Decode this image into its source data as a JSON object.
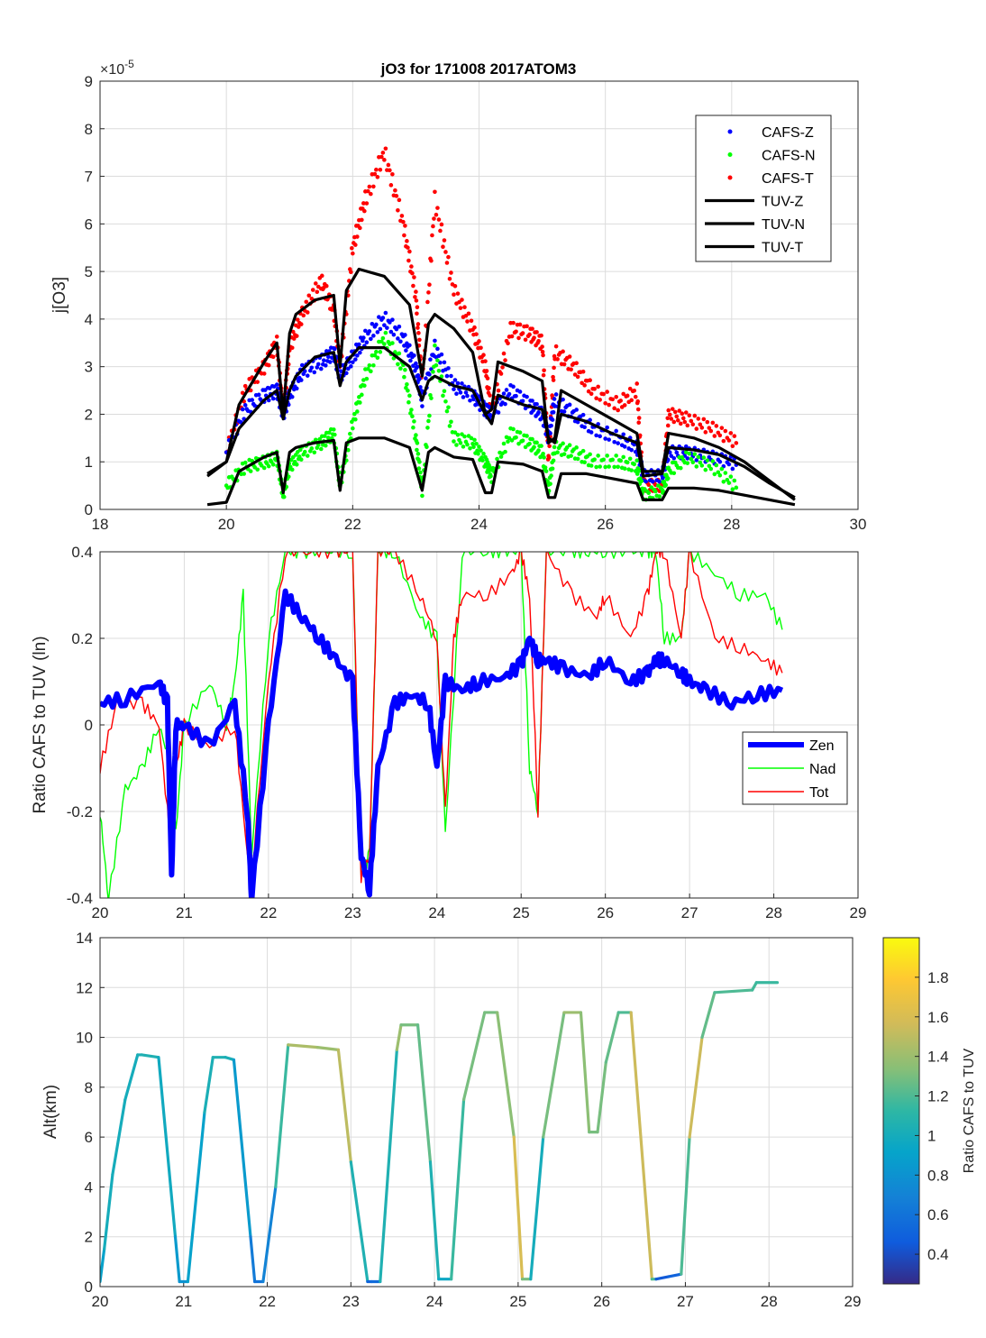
{
  "chart_data": [
    {
      "type": "scatter",
      "title": "jO3 for 171008 2017ATOM3",
      "xlabel": "",
      "ylabel": "j[O3]",
      "y_multiplier": "×10⁻⁵",
      "y_exponent_base": "×10",
      "y_exponent": "-5",
      "xlim": [
        18,
        30
      ],
      "ylim": [
        0,
        9
      ],
      "xticks": [
        18,
        20,
        22,
        24,
        26,
        28,
        30
      ],
      "yticks": [
        0,
        1,
        2,
        3,
        4,
        5,
        6,
        7,
        8,
        9
      ],
      "grid": true,
      "legend_position": "top-right",
      "legend": [
        "CAFS-Z",
        "CAFS-N",
        "CAFS-T",
        "TUV-Z",
        "TUV-N",
        "TUV-T"
      ],
      "series": [
        {
          "name": "CAFS-Z",
          "style": "dots",
          "color": "#0000ff",
          "x": [
            20.0,
            20.3,
            20.6,
            20.8,
            20.9,
            21.0,
            21.2,
            21.5,
            21.7,
            21.8,
            22.0,
            22.2,
            22.5,
            22.8,
            23.0,
            23.1,
            23.3,
            23.6,
            23.9,
            24.1,
            24.2,
            24.5,
            24.8,
            25.0,
            25.1,
            25.2,
            25.5,
            25.8,
            26.2,
            26.5,
            26.6,
            26.9,
            27.0,
            27.3,
            27.7,
            28.1
          ],
          "y": [
            1.2,
            2.1,
            2.4,
            2.5,
            2.0,
            2.4,
            2.9,
            3.1,
            3.3,
            2.8,
            3.2,
            3.6,
            4.0,
            3.6,
            3.0,
            2.3,
            3.4,
            2.6,
            2.4,
            2.1,
            2.0,
            2.5,
            2.2,
            2.0,
            1.5,
            2.3,
            2.0,
            1.7,
            1.5,
            1.3,
            0.7,
            0.7,
            1.2,
            1.2,
            1.1,
            0.95
          ]
        },
        {
          "name": "CAFS-N",
          "style": "dots",
          "color": "#00ff00",
          "x": [
            20.0,
            20.3,
            20.6,
            20.8,
            20.9,
            21.0,
            21.2,
            21.5,
            21.7,
            21.8,
            22.0,
            22.2,
            22.5,
            22.8,
            23.0,
            23.1,
            23.3,
            23.6,
            23.9,
            24.1,
            24.2,
            24.5,
            24.8,
            25.0,
            25.1,
            25.2,
            25.5,
            25.8,
            26.2,
            26.5,
            26.6,
            26.9,
            27.0,
            27.3,
            27.7,
            28.1
          ],
          "y": [
            0.5,
            0.9,
            1.0,
            1.1,
            0.3,
            0.9,
            1.2,
            1.4,
            1.6,
            0.5,
            1.8,
            2.8,
            3.6,
            3.0,
            1.5,
            0.4,
            3.3,
            1.5,
            1.4,
            1.0,
            0.7,
            1.6,
            1.4,
            1.2,
            0.4,
            1.3,
            1.2,
            1.0,
            1.0,
            0.9,
            0.3,
            0.4,
            0.8,
            1.1,
            0.9,
            0.45
          ]
        },
        {
          "name": "CAFS-T",
          "style": "dots",
          "color": "#ff0000",
          "x": [
            20.0,
            20.3,
            20.6,
            20.8,
            20.9,
            21.0,
            21.2,
            21.5,
            21.7,
            21.8,
            22.0,
            22.2,
            22.5,
            22.8,
            23.0,
            23.1,
            23.3,
            23.6,
            23.9,
            24.1,
            24.2,
            24.5,
            24.8,
            25.0,
            25.1,
            25.2,
            25.5,
            25.8,
            26.2,
            26.5,
            26.6,
            26.9,
            27.0,
            27.3,
            27.7,
            28.1
          ],
          "y": [
            1.2,
            2.5,
            3.0,
            3.5,
            2.0,
            3.4,
            4.1,
            4.8,
            4.2,
            3.0,
            5.5,
            6.5,
            7.5,
            6.0,
            4.5,
            2.6,
            6.5,
            4.6,
            3.8,
            3.0,
            2.0,
            3.8,
            3.7,
            3.5,
            1.0,
            3.3,
            3.0,
            2.5,
            2.2,
            2.5,
            0.5,
            0.5,
            2.0,
            1.9,
            1.7,
            1.4
          ]
        },
        {
          "name": "TUV-Z",
          "style": "line",
          "color": "#000000",
          "x": [
            19.7,
            20.0,
            20.2,
            20.6,
            20.8,
            20.9,
            21.0,
            21.1,
            21.4,
            21.7,
            21.8,
            21.9,
            22.1,
            22.5,
            22.9,
            23.1,
            23.2,
            23.3,
            23.6,
            23.9,
            24.1,
            24.2,
            24.3,
            24.7,
            25.0,
            25.1,
            25.2,
            25.3,
            25.7,
            26.1,
            26.5,
            26.6,
            26.9,
            27.0,
            27.4,
            27.8,
            28.2,
            28.6,
            29.0
          ],
          "y": [
            0.75,
            1.0,
            1.7,
            2.3,
            2.5,
            1.9,
            2.5,
            2.8,
            3.2,
            3.3,
            2.6,
            3.1,
            3.4,
            3.4,
            3.0,
            2.3,
            2.7,
            2.8,
            2.6,
            2.5,
            2.0,
            1.8,
            2.4,
            2.2,
            2.1,
            1.5,
            1.4,
            2.0,
            1.85,
            1.6,
            1.4,
            0.7,
            0.75,
            1.3,
            1.25,
            1.15,
            0.9,
            0.55,
            0.25
          ]
        },
        {
          "name": "TUV-N",
          "style": "line",
          "color": "#000000",
          "x": [
            19.7,
            20.0,
            20.2,
            20.6,
            20.8,
            20.9,
            21.0,
            21.1,
            21.4,
            21.7,
            21.8,
            21.9,
            22.1,
            22.5,
            22.9,
            23.1,
            23.2,
            23.3,
            23.6,
            23.9,
            24.1,
            24.2,
            24.3,
            24.7,
            25.0,
            25.1,
            25.2,
            25.3,
            25.7,
            26.1,
            26.5,
            26.6,
            26.9,
            27.0,
            27.4,
            27.8,
            28.2,
            28.6,
            29.0
          ],
          "y": [
            0.1,
            0.15,
            0.8,
            1.1,
            1.2,
            0.35,
            1.2,
            1.3,
            1.4,
            1.45,
            0.4,
            1.4,
            1.5,
            1.5,
            1.3,
            0.4,
            1.2,
            1.3,
            1.1,
            1.05,
            0.35,
            0.35,
            1.0,
            0.95,
            0.8,
            0.25,
            0.25,
            0.75,
            0.75,
            0.65,
            0.55,
            0.2,
            0.2,
            0.45,
            0.45,
            0.4,
            0.3,
            0.2,
            0.1
          ]
        },
        {
          "name": "TUV-T",
          "style": "line",
          "color": "#000000",
          "x": [
            19.7,
            20.0,
            20.2,
            20.6,
            20.8,
            20.9,
            21.0,
            21.1,
            21.4,
            21.7,
            21.8,
            21.9,
            22.1,
            22.5,
            22.9,
            23.1,
            23.2,
            23.3,
            23.6,
            23.9,
            24.1,
            24.2,
            24.3,
            24.7,
            25.0,
            25.1,
            25.2,
            25.3,
            25.7,
            26.1,
            26.5,
            26.6,
            26.9,
            27.0,
            27.4,
            27.8,
            28.2,
            28.6,
            29.0
          ],
          "y": [
            0.7,
            1.0,
            2.2,
            3.1,
            3.5,
            2.0,
            3.7,
            4.1,
            4.4,
            4.5,
            3.0,
            4.6,
            5.05,
            4.9,
            4.3,
            2.8,
            3.9,
            4.1,
            3.8,
            3.3,
            2.0,
            2.1,
            3.1,
            2.9,
            2.7,
            1.4,
            1.5,
            2.5,
            2.2,
            1.9,
            1.6,
            0.8,
            0.8,
            1.6,
            1.5,
            1.3,
            1.0,
            0.6,
            0.2
          ]
        }
      ]
    },
    {
      "type": "line",
      "title": "",
      "xlabel": "",
      "ylabel": "Ratio CAFS to TUV (ln)",
      "xlim": [
        20,
        29
      ],
      "ylim": [
        -0.4,
        0.4
      ],
      "xticks": [
        20,
        21,
        22,
        23,
        24,
        25,
        26,
        27,
        28,
        29
      ],
      "yticks": [
        -0.4,
        -0.2,
        0,
        0.2,
        0.4
      ],
      "grid": true,
      "legend_position": "lower-right",
      "legend": [
        "Zen",
        "Nad",
        "Tot"
      ],
      "series": [
        {
          "name": "Zen",
          "color": "#0000ff",
          "x": [
            20.0,
            20.3,
            20.7,
            20.8,
            20.85,
            20.9,
            21.0,
            21.3,
            21.6,
            21.75,
            21.8,
            22.0,
            22.2,
            22.4,
            22.6,
            22.8,
            23.0,
            23.1,
            23.2,
            23.3,
            23.5,
            23.7,
            23.9,
            24.0,
            24.1,
            24.3,
            24.5,
            24.8,
            25.0,
            25.1,
            25.2,
            25.3,
            25.5,
            25.8,
            26.0,
            26.3,
            26.5,
            26.6,
            26.7,
            26.9,
            27.0,
            27.2,
            27.5,
            27.8,
            28.1
          ],
          "y": [
            0.05,
            0.06,
            0.1,
            0.05,
            -0.35,
            0.0,
            0.0,
            -0.05,
            0.05,
            -0.2,
            -0.4,
            0.0,
            0.3,
            0.25,
            0.2,
            0.15,
            0.1,
            -0.3,
            -0.38,
            -0.1,
            0.05,
            0.07,
            0.05,
            -0.1,
            0.1,
            0.08,
            0.1,
            0.11,
            0.14,
            0.2,
            0.15,
            0.15,
            0.13,
            0.11,
            0.15,
            0.1,
            0.12,
            0.15,
            0.15,
            0.12,
            0.1,
            0.08,
            0.05,
            0.07,
            0.08
          ]
        },
        {
          "name": "Nad",
          "color": "#00ff00",
          "x": [
            20.0,
            20.1,
            20.3,
            20.5,
            20.7,
            20.85,
            20.9,
            21.0,
            21.3,
            21.5,
            21.6,
            21.7,
            21.8,
            22.0,
            22.2,
            22.4,
            22.7,
            23.0,
            23.1,
            23.2,
            23.3,
            23.5,
            23.8,
            24.0,
            24.1,
            24.3,
            24.6,
            24.8,
            25.0,
            25.1,
            25.2,
            25.3,
            25.6,
            25.8,
            26.0,
            26.3,
            26.5,
            26.6,
            26.7,
            26.9,
            27.0,
            27.3,
            27.6,
            27.9,
            28.1
          ],
          "y": [
            -0.2,
            -0.4,
            -0.15,
            -0.1,
            0.0,
            -0.1,
            -0.25,
            0.0,
            0.1,
            0.0,
            0.1,
            0.3,
            -0.3,
            0.2,
            0.4,
            0.4,
            0.4,
            0.4,
            -0.35,
            -0.3,
            0.4,
            0.4,
            0.25,
            0.2,
            -0.25,
            0.4,
            0.4,
            0.4,
            0.4,
            -0.1,
            -0.2,
            0.4,
            0.4,
            0.4,
            0.4,
            0.4,
            0.4,
            0.4,
            0.2,
            0.2,
            0.4,
            0.35,
            0.3,
            0.3,
            0.22
          ]
        },
        {
          "name": "Tot",
          "color": "#ff0000",
          "x": [
            20.0,
            20.2,
            20.5,
            20.7,
            20.85,
            20.9,
            21.0,
            21.3,
            21.6,
            21.75,
            21.8,
            22.0,
            22.2,
            22.5,
            22.8,
            23.0,
            23.1,
            23.2,
            23.3,
            23.5,
            23.8,
            24.0,
            24.1,
            24.2,
            24.3,
            24.6,
            24.9,
            25.0,
            25.1,
            25.2,
            25.3,
            25.6,
            25.9,
            26.0,
            26.3,
            26.5,
            26.6,
            26.7,
            26.9,
            27.0,
            27.3,
            27.6,
            27.9,
            28.1
          ],
          "y": [
            -0.1,
            0.05,
            0.05,
            0.0,
            -0.3,
            -0.1,
            0.0,
            -0.05,
            0.0,
            -0.3,
            -0.35,
            0.1,
            0.4,
            0.4,
            0.4,
            0.4,
            -0.35,
            -0.3,
            0.4,
            0.4,
            0.3,
            0.2,
            -0.2,
            0.2,
            0.3,
            0.3,
            0.35,
            0.4,
            0.3,
            -0.2,
            0.4,
            0.3,
            0.25,
            0.3,
            0.2,
            0.3,
            0.4,
            0.4,
            0.2,
            0.4,
            0.2,
            0.18,
            0.15,
            0.12
          ]
        }
      ]
    },
    {
      "type": "line",
      "title": "",
      "xlabel": "",
      "ylabel": "Alt(km)",
      "xlim": [
        20,
        29
      ],
      "ylim": [
        0,
        14
      ],
      "xticks": [
        20,
        21,
        22,
        23,
        24,
        25,
        26,
        27,
        28,
        29
      ],
      "yticks": [
        0,
        2,
        4,
        6,
        8,
        10,
        12,
        14
      ],
      "grid": true,
      "colorbar": {
        "label": "Ratio CAFS to TUV",
        "range": [
          0.25,
          2.0
        ],
        "ticks": [
          0.4,
          0.6,
          0.8,
          1,
          1.2,
          1.4,
          1.6,
          1.8
        ],
        "colormap": "parula"
      },
      "series": [
        {
          "name": "Altitude",
          "x": [
            20.0,
            20.05,
            20.15,
            20.3,
            20.45,
            20.5,
            20.7,
            20.9,
            20.95,
            21.05,
            21.25,
            21.35,
            21.5,
            21.6,
            21.8,
            21.85,
            21.95,
            22.1,
            22.25,
            22.6,
            22.85,
            23.0,
            23.2,
            23.25,
            23.35,
            23.55,
            23.6,
            23.8,
            23.95,
            24.05,
            24.2,
            24.35,
            24.6,
            24.75,
            24.95,
            25.05,
            25.15,
            25.3,
            25.55,
            25.75,
            25.85,
            25.95,
            26.05,
            26.2,
            26.35,
            26.6,
            26.65,
            26.8,
            26.95,
            27.05,
            27.2,
            27.35,
            27.8,
            27.85,
            28.1
          ],
          "y": [
            0.2,
            1.5,
            4.5,
            7.5,
            9.3,
            9.3,
            9.2,
            2.0,
            0.2,
            0.2,
            7.0,
            9.2,
            9.2,
            9.1,
            2.0,
            0.2,
            0.2,
            4.0,
            9.7,
            9.6,
            9.5,
            5.0,
            0.2,
            0.2,
            0.2,
            9.5,
            10.5,
            10.5,
            5.0,
            0.3,
            0.3,
            7.5,
            11.0,
            11.0,
            6.0,
            0.3,
            0.3,
            6.0,
            11.0,
            11.0,
            6.2,
            6.2,
            9.0,
            11.0,
            11.0,
            0.3,
            0.3,
            0.4,
            0.5,
            6.0,
            10.0,
            11.8,
            11.9,
            12.2,
            12.2
          ],
          "ratio": [
            0.8,
            1.0,
            1.0,
            1.0,
            1.0,
            1.05,
            1.05,
            0.9,
            0.8,
            0.8,
            1.0,
            1.05,
            1.05,
            1.0,
            0.7,
            0.6,
            0.6,
            0.8,
            1.5,
            1.4,
            1.4,
            1.6,
            0.5,
            0.5,
            0.6,
            1.5,
            1.3,
            1.3,
            1.2,
            0.9,
            1.0,
            1.3,
            1.3,
            1.3,
            1.4,
            1.8,
            0.8,
            1.2,
            1.4,
            1.4,
            1.3,
            1.3,
            1.3,
            1.2,
            1.2,
            1.9,
            0.5,
            0.4,
            0.6,
            1.8,
            1.3,
            1.2,
            1.2,
            1.15,
            1.15
          ]
        }
      ]
    }
  ]
}
